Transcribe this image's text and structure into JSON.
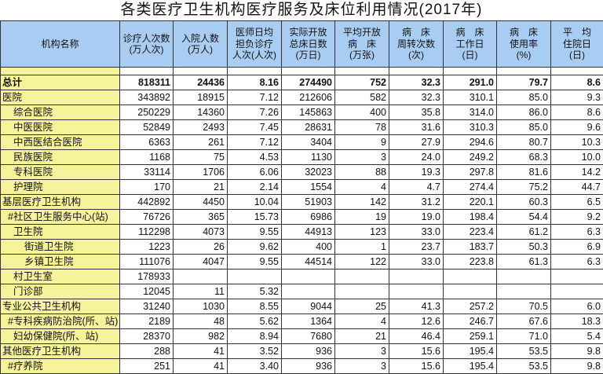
{
  "title": "各类医疗卫生机构医疗服务及床位利用情况(2017年)",
  "headers": [
    "机构名称",
    "诊疗人次数\n(万人次)",
    "入院人数\n(万人)",
    "医师日均\n担负诊疗\n人次(人次)",
    "实际开放\n总床日数\n(万日)",
    "平均开放\n病　床\n(万张)",
    "病　床\n周转次数\n(次)",
    "病　床\n工作日\n(日)",
    "病　床\n使用率\n(%)",
    "平　均\n住院日\n(日)"
  ],
  "rows": [
    {
      "name": "总计",
      "indent": 0,
      "bold": true,
      "values": [
        "818311",
        "24436",
        "8.16",
        "274490",
        "752",
        "32.3",
        "291.0",
        "79.7",
        "8.6"
      ]
    },
    {
      "name": "医院",
      "indent": 0,
      "values": [
        "343892",
        "18915",
        "7.12",
        "212606",
        "582",
        "32.3",
        "310.1",
        "85.0",
        "9.3"
      ]
    },
    {
      "name": "综合医院",
      "indent": 1,
      "values": [
        "250229",
        "14360",
        "7.26",
        "145863",
        "400",
        "35.8",
        "314.0",
        "86.0",
        "8.6"
      ]
    },
    {
      "name": "中医医院",
      "indent": 1,
      "values": [
        "52849",
        "2493",
        "7.45",
        "28631",
        "78",
        "31.6",
        "310.3",
        "85.0",
        "9.6"
      ]
    },
    {
      "name": "中西医结合医院",
      "indent": 1,
      "values": [
        "6363",
        "261",
        "7.12",
        "3404",
        "9",
        "27.9",
        "294.6",
        "80.7",
        "10.3"
      ]
    },
    {
      "name": "民族医院",
      "indent": 1,
      "values": [
        "1168",
        "75",
        "4.53",
        "1130",
        "3",
        "24.0",
        "249.2",
        "68.3",
        "10.0"
      ]
    },
    {
      "name": "专科医院",
      "indent": 1,
      "values": [
        "33114",
        "1706",
        "6.06",
        "32023",
        "88",
        "19.3",
        "297.8",
        "81.6",
        "14.2"
      ]
    },
    {
      "name": "护理院",
      "indent": 1,
      "values": [
        "170",
        "21",
        "2.14",
        "1554",
        "4",
        "4.7",
        "274.4",
        "75.2",
        "44.7"
      ]
    },
    {
      "name": "基层医疗卫生机构",
      "indent": 0,
      "values": [
        "442892",
        "4450",
        "10.04",
        "51903",
        "142",
        "31.2",
        "220.1",
        "60.3",
        "6.5"
      ]
    },
    {
      "name": "#社区卫生服务中心(站)",
      "indent": 0.5,
      "values": [
        "76726",
        "365",
        "15.73",
        "6986",
        "19",
        "19.0",
        "198.4",
        "54.4",
        "9.2"
      ]
    },
    {
      "name": "卫生院",
      "indent": 1,
      "values": [
        "112298",
        "4073",
        "9.55",
        "44913",
        "123",
        "33.0",
        "223.4",
        "61.2",
        "6.3"
      ]
    },
    {
      "name": "街道卫生院",
      "indent": 2,
      "values": [
        "1223",
        "26",
        "9.62",
        "400",
        "1",
        "23.7",
        "183.7",
        "50.3",
        "6.9"
      ]
    },
    {
      "name": "乡镇卫生院",
      "indent": 2,
      "values": [
        "111076",
        "4047",
        "9.55",
        "44514",
        "122",
        "33.0",
        "223.8",
        "61.3",
        "6.3"
      ]
    },
    {
      "name": "村卫生室",
      "indent": 1,
      "values": [
        "178933",
        "",
        "",
        "",
        "",
        "",
        "",
        "",
        ""
      ]
    },
    {
      "name": "门诊部",
      "indent": 1,
      "values": [
        "12045",
        "11",
        "5.32",
        "",
        "",
        "",
        "",
        "",
        ""
      ]
    },
    {
      "name": "专业公共卫生机构",
      "indent": 0,
      "values": [
        "31240",
        "1030",
        "8.55",
        "9044",
        "25",
        "41.3",
        "257.2",
        "70.5",
        "6.0"
      ]
    },
    {
      "name": "#专科疾病防治院(所、站)",
      "indent": 0.5,
      "values": [
        "2189",
        "48",
        "5.62",
        "1364",
        "4",
        "12.6",
        "246.7",
        "67.6",
        "18.3"
      ]
    },
    {
      "name": "妇幼保健院(所、站)",
      "indent": 1,
      "values": [
        "28370",
        "982",
        "8.94",
        "7680",
        "21",
        "46.4",
        "259.1",
        "71.0",
        "5.4"
      ]
    },
    {
      "name": "其他医疗卫生机构",
      "indent": 0,
      "values": [
        "288",
        "41",
        "3.52",
        "936",
        "3",
        "15.6",
        "195.4",
        "53.5",
        "9.8"
      ]
    },
    {
      "name": "#疗养院",
      "indent": 0.5,
      "values": [
        "251",
        "41",
        "3.40",
        "936",
        "3",
        "15.6",
        "195.4",
        "53.5",
        "9.8"
      ]
    }
  ]
}
